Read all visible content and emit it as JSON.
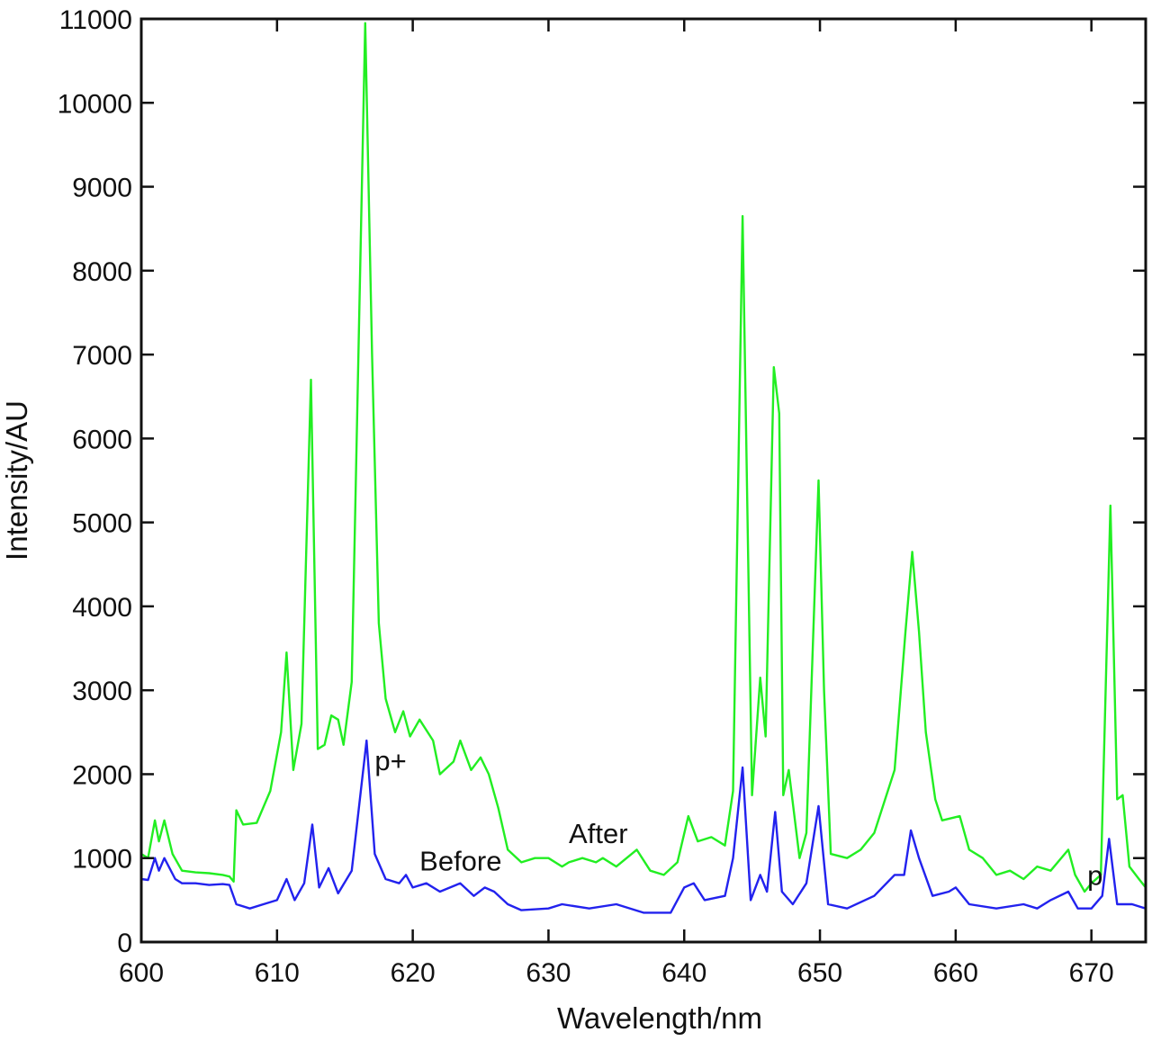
{
  "chart_data": {
    "type": "line",
    "title": "",
    "xlabel": "Wavelength/nm",
    "ylabel": "Intensity/AU",
    "xlim": [
      600,
      674
    ],
    "ylim": [
      0,
      11000
    ],
    "grid": false,
    "legend": null,
    "x_ticks": [
      600,
      610,
      620,
      630,
      640,
      650,
      660,
      670
    ],
    "y_ticks": [
      0,
      1000,
      2000,
      3000,
      4000,
      5000,
      6000,
      7000,
      8000,
      9000,
      10000,
      11000
    ],
    "annotations": [
      {
        "text": "p+",
        "x": 617.2,
        "y": 2050
      },
      {
        "text": "Before",
        "x": 620.5,
        "y": 850
      },
      {
        "text": "After",
        "x": 631.5,
        "y": 1180
      },
      {
        "text": "p",
        "x": 669.7,
        "y": 680
      }
    ],
    "series": [
      {
        "name": "After",
        "color": "#22ee22",
        "x": [
          600,
          600.5,
          601,
          601.3,
          601.7,
          602.3,
          603,
          604,
          605,
          606,
          606.5,
          606.8,
          607,
          607.5,
          608.5,
          609.5,
          610.3,
          610.7,
          611.2,
          611.8,
          612.5,
          613,
          613.5,
          614,
          614.5,
          614.9,
          615.5,
          616.5,
          617,
          617.5,
          618,
          618.7,
          619.3,
          619.8,
          620.5,
          621.5,
          622,
          623,
          623.5,
          624.3,
          625,
          625.6,
          626.3,
          627,
          628,
          629,
          630,
          631,
          631.5,
          632.5,
          633.5,
          634,
          635,
          636.5,
          637.5,
          638.5,
          639.5,
          640.3,
          641,
          642,
          643,
          643.6,
          644.3,
          645,
          645.6,
          646,
          646.6,
          647,
          647.3,
          647.7,
          648.5,
          649,
          649.9,
          650.3,
          650.8,
          652,
          653,
          654,
          655.5,
          656.3,
          656.8,
          657.3,
          657.8,
          658.5,
          659,
          660.3,
          661,
          662,
          663,
          664,
          665,
          666,
          667,
          668.3,
          668.8,
          669.5,
          670,
          670.7,
          671.4,
          671.9,
          672.3,
          672.8,
          673.5,
          674
        ],
        "values": [
          1050,
          1000,
          1450,
          1200,
          1450,
          1050,
          850,
          830,
          820,
          800,
          780,
          720,
          1570,
          1400,
          1420,
          1800,
          2500,
          3450,
          2050,
          2600,
          6700,
          2300,
          2350,
          2700,
          2650,
          2350,
          3100,
          10950,
          7000,
          3800,
          2900,
          2500,
          2750,
          2450,
          2650,
          2400,
          2000,
          2150,
          2400,
          2050,
          2200,
          2000,
          1600,
          1100,
          950,
          1000,
          1000,
          900,
          950,
          1000,
          950,
          1000,
          900,
          1100,
          850,
          800,
          950,
          1500,
          1200,
          1250,
          1150,
          1800,
          8650,
          1750,
          3150,
          2450,
          6850,
          6300,
          1750,
          2050,
          1000,
          1300,
          5500,
          3000,
          1050,
          1000,
          1100,
          1300,
          2050,
          3700,
          4650,
          3700,
          2500,
          1700,
          1450,
          1500,
          1100,
          1000,
          800,
          850,
          750,
          900,
          850,
          1100,
          800,
          600,
          700,
          800,
          5200,
          1700,
          1750,
          900,
          750,
          650
        ]
      },
      {
        "name": "Before",
        "color": "#2222ee",
        "x": [
          600,
          600.5,
          601,
          601.3,
          601.7,
          602.5,
          603,
          604,
          605,
          606,
          606.5,
          607,
          608,
          609,
          610,
          610.7,
          611.3,
          612,
          612.6,
          613.1,
          613.8,
          614.5,
          615.5,
          616.6,
          617.2,
          618,
          619,
          619.5,
          620,
          621,
          622,
          623.5,
          624.5,
          625.3,
          626,
          627,
          628,
          630,
          631,
          633,
          635,
          637,
          639,
          640,
          640.7,
          641.5,
          643,
          643.6,
          644.3,
          644.9,
          645.6,
          646.1,
          646.7,
          647.2,
          648,
          649,
          649.9,
          650.6,
          652,
          654,
          655.5,
          656.2,
          656.7,
          657.3,
          658.3,
          659.5,
          660,
          661,
          663,
          665,
          666,
          667,
          668.3,
          669,
          670,
          670.8,
          671.3,
          671.9,
          673,
          674
        ],
        "values": [
          750,
          740,
          1000,
          850,
          1000,
          750,
          700,
          700,
          680,
          690,
          680,
          450,
          400,
          450,
          500,
          750,
          500,
          700,
          1400,
          650,
          880,
          580,
          850,
          2400,
          1050,
          750,
          700,
          800,
          650,
          700,
          600,
          700,
          550,
          650,
          600,
          450,
          380,
          400,
          450,
          400,
          450,
          350,
          350,
          650,
          700,
          500,
          550,
          1000,
          2080,
          500,
          800,
          600,
          1550,
          600,
          450,
          700,
          1620,
          450,
          400,
          550,
          800,
          800,
          1330,
          1000,
          550,
          600,
          650,
          450,
          400,
          450,
          400,
          500,
          600,
          400,
          400,
          550,
          1230,
          450,
          450,
          400
        ]
      }
    ]
  }
}
